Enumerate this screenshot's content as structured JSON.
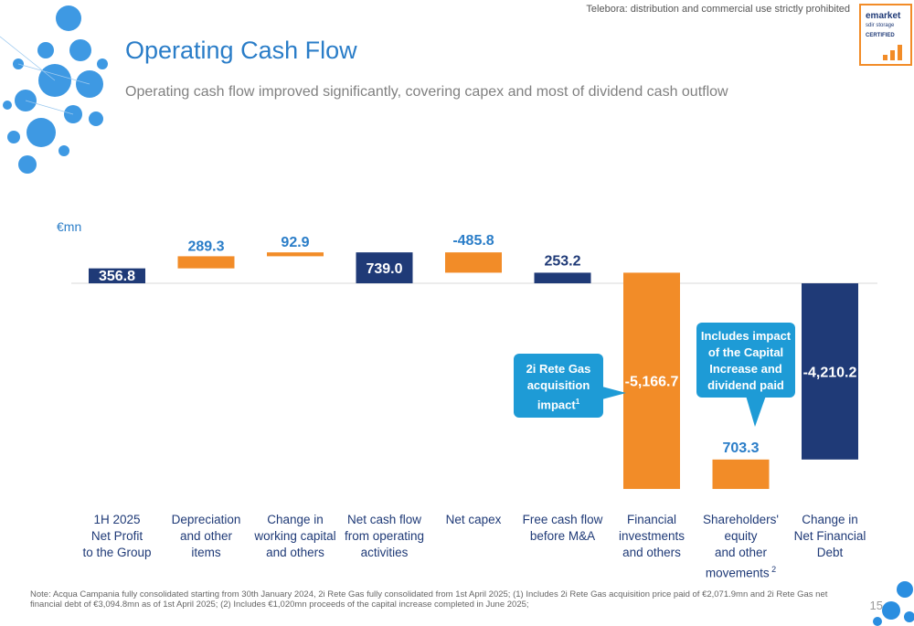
{
  "header": {
    "disclaimer": "Telebora: distribution and commercial use strictly prohibited",
    "title": "Operating Cash Flow",
    "subtitle": "Operating cash flow improved significantly, covering capex and most of dividend cash outflow"
  },
  "logo": {
    "line1": "emarket",
    "line2": "sdir storage",
    "line3": "CERTIFIED",
    "accent": "#f28c28"
  },
  "colors": {
    "navy": "#1f3a77",
    "orange": "#f28c28",
    "blue": "#2a7dc8",
    "callout": "#1e9bd6"
  },
  "chart_data": {
    "type": "bar",
    "unit": "€mn",
    "categories": [
      "1H 2025 Net Profit to the Group",
      "Depreciation and other items",
      "Change in working capital and others",
      "Net cash flow from operating activities",
      "Net capex",
      "Free cash flow before M&A",
      "Financial investments and others",
      "Shareholders' equity and other movements",
      "Change in Net Financial Debt"
    ],
    "values": [
      356.8,
      289.3,
      92.9,
      739.0,
      -485.8,
      253.2,
      -5166.7,
      703.3,
      -4210.2
    ],
    "labels": [
      "356.8",
      "289.3",
      "92.9",
      "739.0",
      "-485.8",
      "253.2",
      "-5,166.7",
      "703.3",
      "-4,210.2"
    ],
    "kinds": [
      "total",
      "delta",
      "delta",
      "total",
      "delta",
      "total",
      "delta",
      "delta",
      "total"
    ]
  },
  "category_lines": [
    [
      "1H 2025",
      "Net Profit",
      "to the Group"
    ],
    [
      "Depreciation",
      "and other",
      "items"
    ],
    [
      "Change in",
      "working capital",
      "and others"
    ],
    [
      "Net cash flow",
      "from operating",
      "activities"
    ],
    [
      "Net capex"
    ],
    [
      "Free cash flow",
      "before M&A"
    ],
    [
      "Financial",
      "investments",
      "and others"
    ],
    [
      "Shareholders'",
      "equity",
      "and other",
      "movements"
    ],
    [
      "Change in",
      "Net Financial",
      "Debt"
    ]
  ],
  "footnote_mark": "2",
  "callouts": {
    "rete_gas": [
      "2i Rete Gas",
      "acquisition",
      "impact"
    ],
    "rete_gas_sup": "1",
    "capital": [
      "Includes impact",
      "of the Capital",
      "Increase and",
      "dividend paid"
    ]
  },
  "note": "Note: Acqua Campania fully consolidated starting from 30th January 2024, 2i Rete Gas fully consolidated from 1st April 2025; (1) Includes 2i Rete Gas acquisition price paid of €2,071.9mn and 2i Rete Gas net financial debt of €3,094.8mn as of 1st April 2025; (2) Includes €1,020mn proceeds of the capital increase completed in June 2025;",
  "page_number": "15"
}
